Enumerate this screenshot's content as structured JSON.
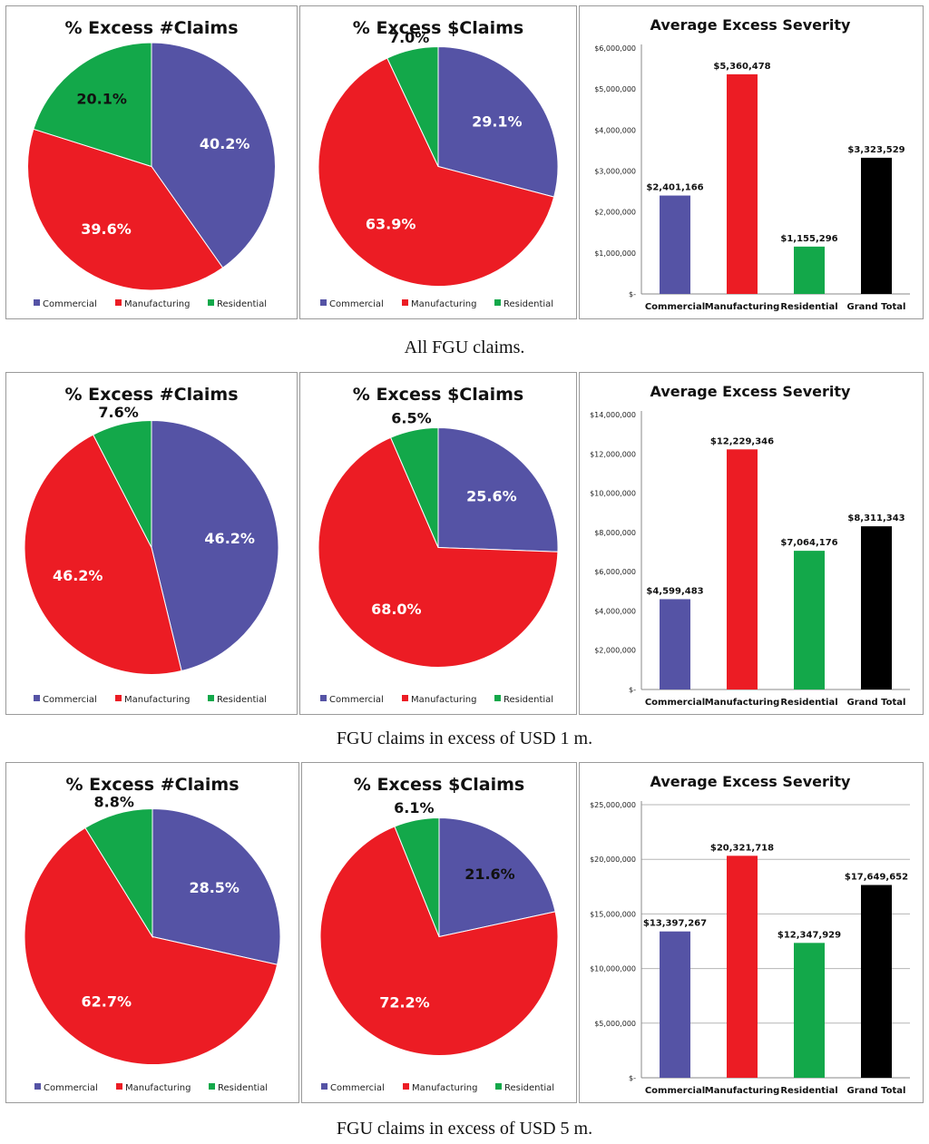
{
  "colors": {
    "Commercial": "#5553a5",
    "Manufacturing": "#ec1c24",
    "Residential": "#13a84a",
    "Grand Total": "#000000"
  },
  "legend": [
    "Commercial",
    "Manufacturing",
    "Residential"
  ],
  "rows": [
    {
      "caption": "All FGU claims."
    },
    {
      "caption": "FGU claims in excess of USD 1 m."
    },
    {
      "caption": "FGU claims in excess of USD 5 m."
    }
  ],
  "chart_data": [
    {
      "type": "pie",
      "title": "% Excess #Claims",
      "categories": [
        "Commercial",
        "Manufacturing",
        "Residential"
      ],
      "values": [
        40.2,
        39.6,
        20.1
      ],
      "labels": [
        "40.2%",
        "39.6%",
        "20.1%"
      ]
    },
    {
      "type": "pie",
      "title": "% Excess $Claims",
      "categories": [
        "Commercial",
        "Manufacturing",
        "Residential"
      ],
      "values": [
        29.1,
        63.9,
        7.0
      ],
      "labels": [
        "29.1%",
        "63.9%",
        "7.0%"
      ]
    },
    {
      "type": "bar",
      "title": "Average Excess Severity",
      "categories": [
        "Commercial",
        "Manufacturing",
        "Residential",
        "Grand Total"
      ],
      "values": [
        2401166,
        5360478,
        1155296,
        3323529
      ],
      "labels": [
        "$2,401,166",
        "$5,360,478",
        "$1,155,296",
        "$3,323,529"
      ],
      "ylim": [
        0,
        6000000
      ],
      "yticks": [
        0,
        1000000,
        2000000,
        3000000,
        4000000,
        5000000,
        6000000
      ],
      "ytick_labels": [
        "$-",
        "$1,000,000",
        "$2,000,000",
        "$3,000,000",
        "$4,000,000",
        "$5,000,000",
        "$6,000,000"
      ],
      "grid": false
    },
    {
      "type": "pie",
      "title": "% Excess #Claims",
      "categories": [
        "Commercial",
        "Manufacturing",
        "Residential"
      ],
      "values": [
        46.2,
        46.2,
        7.6
      ],
      "labels": [
        "46.2%",
        "46.2%",
        "7.6%"
      ]
    },
    {
      "type": "pie",
      "title": "% Excess $Claims",
      "categories": [
        "Commercial",
        "Manufacturing",
        "Residential"
      ],
      "values": [
        25.6,
        68.0,
        6.5
      ],
      "labels": [
        "25.6%",
        "68.0%",
        "6.5%"
      ]
    },
    {
      "type": "bar",
      "title": "Average Excess Severity",
      "categories": [
        "Commercial",
        "Manufacturing",
        "Residential",
        "Grand Total"
      ],
      "values": [
        4599483,
        12229346,
        7064176,
        8311343
      ],
      "labels": [
        "$4,599,483",
        "$12,229,346",
        "$7,064,176",
        "$8,311,343"
      ],
      "ylim": [
        0,
        14000000
      ],
      "yticks": [
        0,
        2000000,
        4000000,
        6000000,
        8000000,
        10000000,
        12000000,
        14000000
      ],
      "ytick_labels": [
        "$-",
        "$2,000,000",
        "$4,000,000",
        "$6,000,000",
        "$8,000,000",
        "$10,000,000",
        "$12,000,000",
        "$14,000,000"
      ],
      "grid": false
    },
    {
      "type": "pie",
      "title": "% Excess #Claims",
      "categories": [
        "Commercial",
        "Manufacturing",
        "Residential"
      ],
      "values": [
        28.5,
        62.7,
        8.8
      ],
      "labels": [
        "28.5%",
        "62.7%",
        "8.8%"
      ]
    },
    {
      "type": "pie",
      "title": "% Excess $Claims",
      "categories": [
        "Commercial",
        "Manufacturing",
        "Residential"
      ],
      "values": [
        21.6,
        72.2,
        6.1
      ],
      "labels": [
        "21.6%",
        "72.2%",
        "6.1%"
      ]
    },
    {
      "type": "bar",
      "title": "Average Excess Severity",
      "categories": [
        "Commercial",
        "Manufacturing",
        "Residential",
        "Grand Total"
      ],
      "values": [
        13397267,
        20321718,
        12347929,
        17649652
      ],
      "labels": [
        "$13,397,267",
        "$20,321,718",
        "$12,347,929",
        "$17,649,652"
      ],
      "ylim": [
        0,
        25000000
      ],
      "yticks": [
        0,
        5000000,
        10000000,
        15000000,
        20000000,
        25000000
      ],
      "ytick_labels": [
        "$-",
        "$5,000,000",
        "$10,000,000",
        "$15,000,000",
        "$20,000,000",
        "$25,000,000"
      ],
      "grid": true
    }
  ]
}
